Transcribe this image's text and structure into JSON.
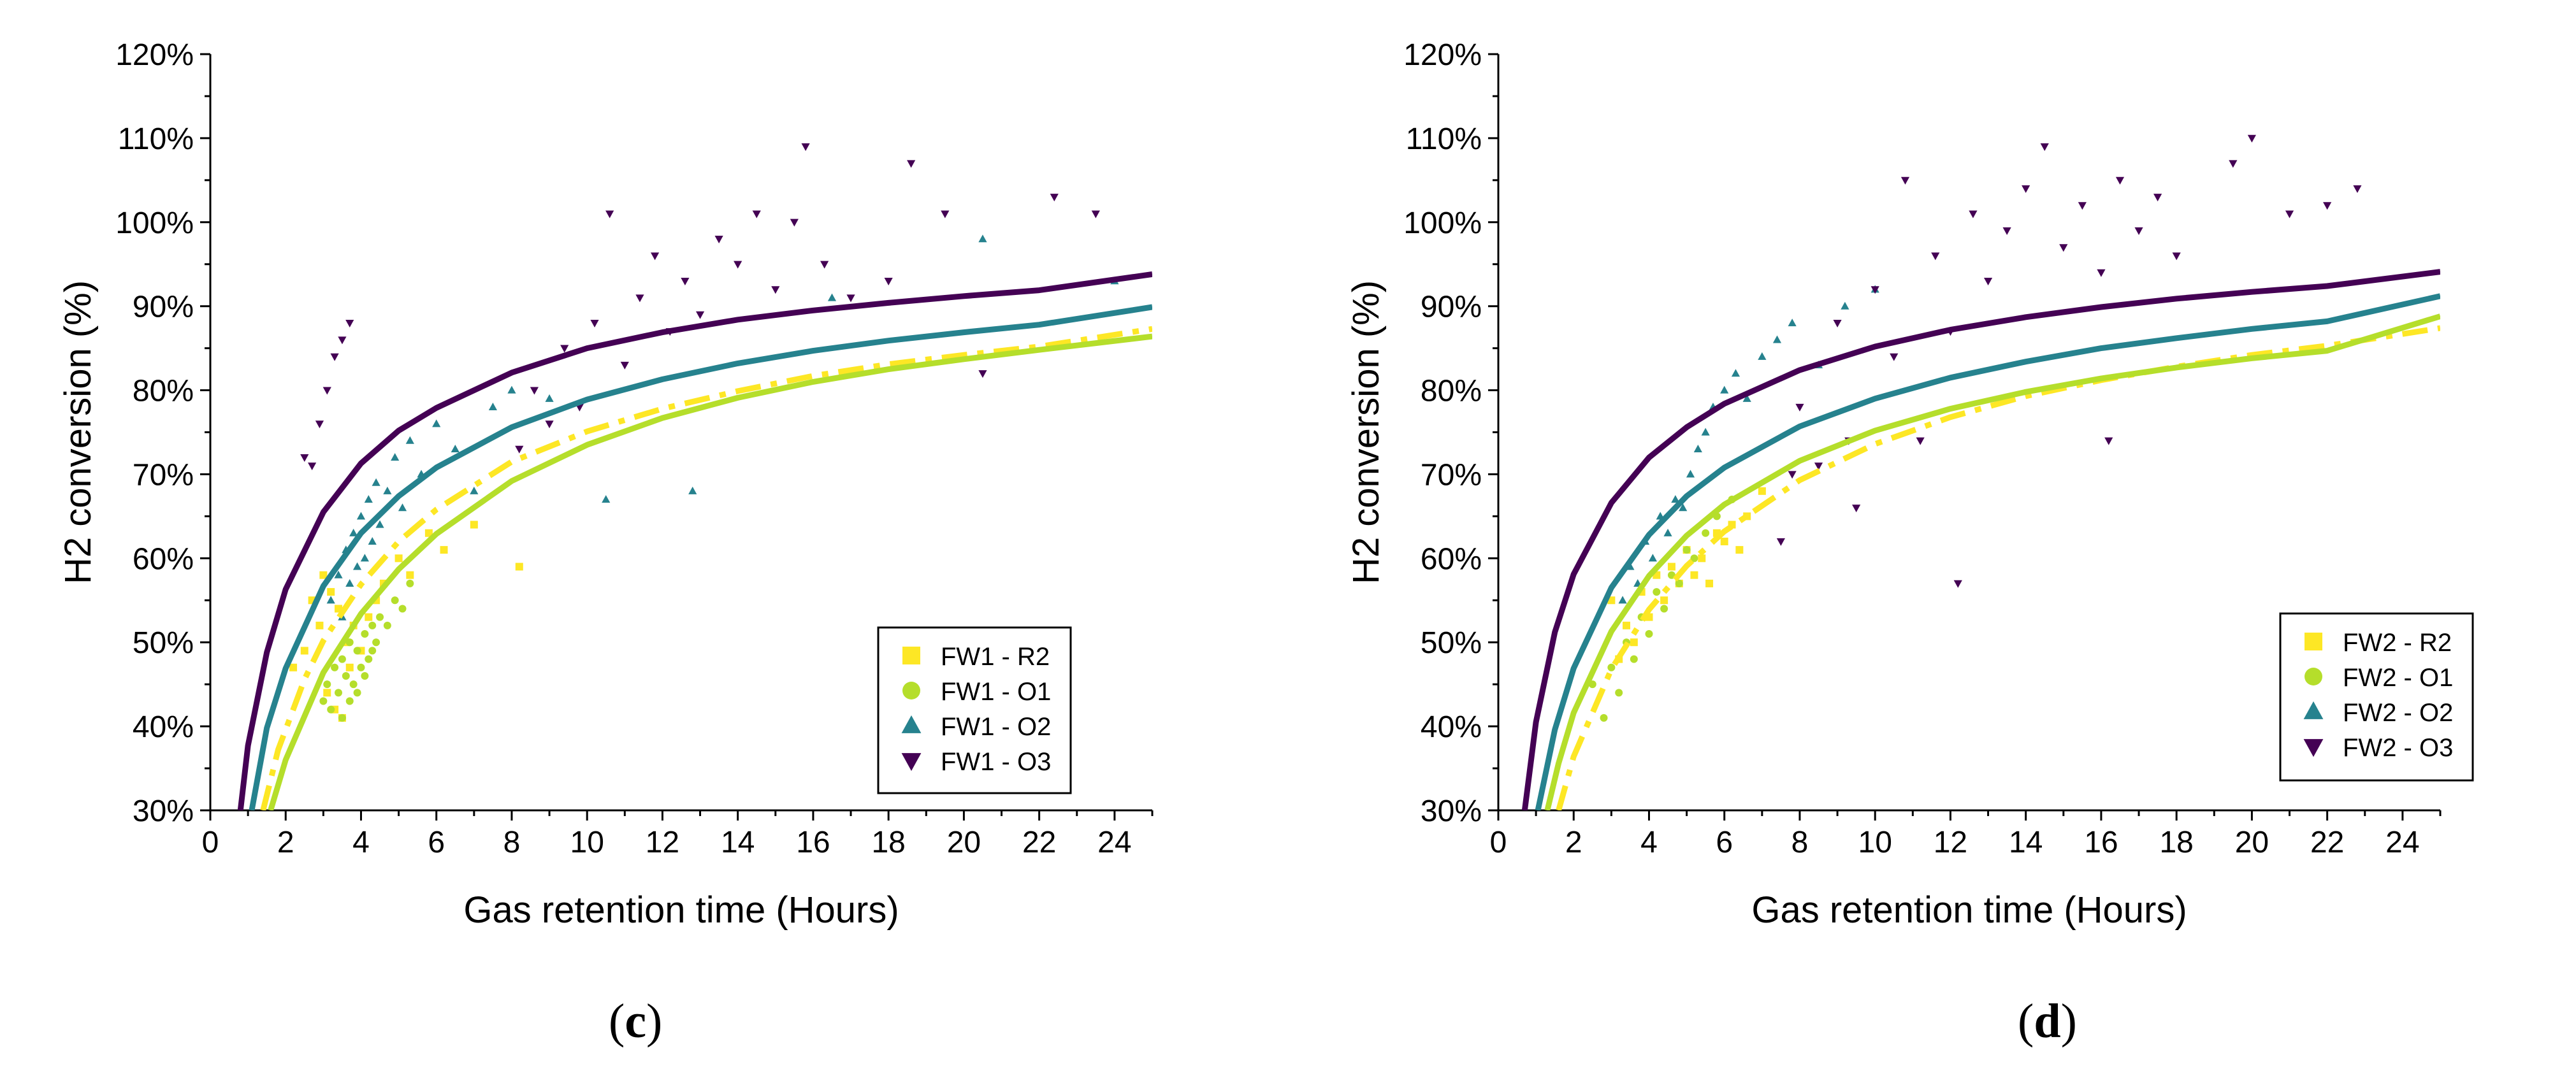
{
  "colors": {
    "R2": "#fde725",
    "O1": "#b5de2b",
    "O2": "#26828e",
    "O3": "#440154"
  },
  "chart_data": [
    {
      "type": "scatter",
      "panel_label": "c",
      "xlabel": "Gas retention time (Hours)",
      "ylabel": "H2 conversion (%)",
      "xlim": [
        0,
        25
      ],
      "ylim": [
        30,
        120
      ],
      "xticks": [
        0,
        2,
        4,
        6,
        8,
        10,
        12,
        14,
        16,
        18,
        20,
        22,
        24
      ],
      "yticks": [
        30,
        40,
        50,
        60,
        70,
        80,
        90,
        100,
        110,
        120
      ],
      "ytick_labels": [
        "30%",
        "40%",
        "50%",
        "60%",
        "70%",
        "80%",
        "90%",
        "100%",
        "110%",
        "120%"
      ],
      "legend_position": "bottom-right",
      "series": [
        {
          "name": "FW1 - R2",
          "key": "R2",
          "marker": "square",
          "line": "dash-dot",
          "curve": {
            "x": [
              1.4,
              1.8,
              2.5,
              3,
              4,
              5,
              6,
              8,
              10,
              12,
              14,
              16,
              18,
              20,
              22,
              25
            ],
            "y": [
              30,
              37.2,
              45.6,
              50.2,
              56.9,
              62,
              65.8,
              71.5,
              75.1,
              77.8,
              79.9,
              81.7,
              83.1,
              84.2,
              85.2,
              87.3
            ]
          },
          "points": {
            "x": [
              2.2,
              2.5,
              2.7,
              2.9,
              3.0,
              3.1,
              3.2,
              3.3,
              3.4,
              3.5,
              3.6,
              3.7,
              3.8,
              4.0,
              4.2,
              4.4,
              4.6,
              5.0,
              5.3,
              5.8,
              6.2,
              7.0,
              8.2
            ],
            "y": [
              47,
              49,
              55,
              52,
              58,
              44,
              56,
              42,
              54,
              41,
              50,
              47,
              52,
              49,
              53,
              55,
              57,
              60,
              58,
              63,
              61,
              64,
              59
            ]
          }
        },
        {
          "name": "FW1 - O1",
          "key": "O1",
          "marker": "circle",
          "line": "solid",
          "curve": {
            "x": [
              1.6,
              2,
              3,
              4,
              5,
              6,
              8,
              10,
              12,
              14,
              16,
              18,
              20,
              22,
              25
            ],
            "y": [
              30,
              36,
              46.4,
              53.4,
              58.7,
              62.9,
              69.2,
              73.5,
              76.7,
              79.1,
              81,
              82.5,
              83.7,
              84.8,
              86.4
            ]
          },
          "points": {
            "x": [
              3.0,
              3.1,
              3.2,
              3.3,
              3.4,
              3.5,
              3.6,
              3.7,
              3.8,
              3.9,
              4.0,
              4.1,
              4.2,
              4.3,
              4.4,
              4.5,
              4.7,
              4.9,
              5.1,
              5.3,
              3.5,
              3.7,
              3.9,
              4.1,
              4.3
            ],
            "y": [
              43,
              45,
              42,
              47,
              44,
              48,
              46,
              50,
              45,
              49,
              47,
              51,
              48,
              52,
              50,
              53,
              52,
              55,
              54,
              57,
              41,
              43,
              44,
              46,
              49
            ]
          }
        },
        {
          "name": "FW1 - O2",
          "key": "O2",
          "marker": "triangle-up",
          "line": "solid",
          "curve": {
            "x": [
              1.1,
              1.5,
              2,
              3,
              4,
              5,
              6,
              8,
              10,
              12,
              14,
              16,
              18,
              20,
              22,
              25
            ],
            "y": [
              30,
              39.8,
              46.9,
              56.7,
              63,
              67.4,
              70.8,
              75.6,
              78.9,
              81.3,
              83.2,
              84.7,
              85.9,
              86.9,
              87.8,
              89.9
            ]
          },
          "points": {
            "x": [
              3.2,
              3.4,
              3.5,
              3.6,
              3.7,
              3.8,
              3.9,
              4.0,
              4.1,
              4.2,
              4.3,
              4.4,
              4.5,
              4.7,
              4.9,
              5.1,
              5.3,
              5.6,
              6.0,
              6.5,
              7.0,
              7.5,
              8.0,
              9.0,
              10.5,
              12.8,
              16.5,
              20.5,
              24.0
            ],
            "y": [
              55,
              58,
              53,
              61,
              57,
              63,
              59,
              65,
              60,
              67,
              62,
              69,
              64,
              68,
              72,
              66,
              74,
              70,
              76,
              73,
              68,
              78,
              80,
              79,
              67,
              68,
              91,
              98,
              93
            ]
          }
        },
        {
          "name": "FW1 - O3",
          "key": "O3",
          "marker": "triangle-down",
          "line": "solid",
          "curve": {
            "x": [
              0.8,
              1,
              1.5,
              2,
              3,
              4,
              5,
              6,
              8,
              10,
              12,
              14,
              16,
              18,
              20,
              22,
              25
            ],
            "y": [
              30,
              37.7,
              48.8,
              56.3,
              65.5,
              71.3,
              75.2,
              77.9,
              82.1,
              85,
              86.9,
              88.4,
              89.5,
              90.4,
              91.2,
              91.9,
              93.8
            ]
          },
          "points": {
            "x": [
              2.5,
              2.7,
              2.9,
              3.1,
              3.3,
              3.5,
              3.7,
              8.2,
              8.6,
              9.0,
              9.4,
              9.8,
              10.2,
              10.6,
              11.0,
              11.4,
              11.8,
              12.2,
              12.6,
              13.0,
              13.5,
              14.0,
              14.5,
              15.0,
              15.5,
              15.8,
              16.3,
              17.0,
              18.0,
              18.6,
              19.5,
              20.5,
              22.4,
              23.5
            ],
            "y": [
              72,
              71,
              76,
              80,
              84,
              86,
              88,
              73,
              80,
              76,
              85,
              78,
              88,
              101,
              83,
              91,
              96,
              87,
              93,
              89,
              98,
              95,
              101,
              92,
              100,
              109,
              95,
              91,
              93,
              107,
              101,
              82,
              103,
              101
            ]
          }
        }
      ]
    },
    {
      "type": "scatter",
      "panel_label": "d",
      "xlabel": "Gas retention time (Hours)",
      "ylabel": "H2 conversion (%)",
      "xlim": [
        0,
        25
      ],
      "ylim": [
        30,
        120
      ],
      "xticks": [
        0,
        2,
        4,
        6,
        8,
        10,
        12,
        14,
        16,
        18,
        20,
        22,
        24
      ],
      "yticks": [
        30,
        40,
        50,
        60,
        70,
        80,
        90,
        100,
        110,
        120
      ],
      "ytick_labels": [
        "30%",
        "40%",
        "50%",
        "60%",
        "70%",
        "80%",
        "90%",
        "100%",
        "110%",
        "120%"
      ],
      "legend_position": "bottom-right",
      "series": [
        {
          "name": "FW2 - R2",
          "key": "R2",
          "marker": "square",
          "line": "dash-dot",
          "curve": {
            "x": [
              1.6,
              2,
              3,
              4,
              5,
              6,
              8,
              10,
              12,
              14,
              16,
              18,
              20,
              22,
              25
            ],
            "y": [
              30,
              36.4,
              46.8,
              53.9,
              59.1,
              63.2,
              69.3,
              73.6,
              76.8,
              79.3,
              81.2,
              82.8,
              84.2,
              85.3,
              87.4
            ]
          },
          "points": {
            "x": [
              3.0,
              3.2,
              3.4,
              3.6,
              3.8,
              4.0,
              4.2,
              4.4,
              4.6,
              4.8,
              5.0,
              5.2,
              5.4,
              5.6,
              5.8,
              6.0,
              6.2,
              6.4,
              6.6,
              7.0
            ],
            "y": [
              55,
              48,
              52,
              50,
              56,
              53,
              58,
              55,
              59,
              57,
              61,
              58,
              60,
              57,
              63,
              62,
              64,
              61,
              65,
              68
            ]
          }
        },
        {
          "name": "FW2 - O1",
          "key": "O1",
          "marker": "circle",
          "line": "solid",
          "curve": {
            "x": [
              1.3,
              1.6,
              2,
              3,
              4,
              5,
              6,
              8,
              10,
              12,
              14,
              16,
              18,
              20,
              22,
              25
            ],
            "y": [
              30,
              35.6,
              41.6,
              51.3,
              57.9,
              62.7,
              66.4,
              71.6,
              75.2,
              77.8,
              79.8,
              81.4,
              82.7,
              83.8,
              84.7,
              88.8
            ]
          },
          "points": {
            "x": [
              2.5,
              2.8,
              3.0,
              3.2,
              3.4,
              3.6,
              3.8,
              4.0,
              4.2,
              4.4,
              4.6,
              4.8,
              5.0,
              5.2,
              5.5,
              5.8,
              6.2
            ],
            "y": [
              45,
              41,
              47,
              44,
              50,
              48,
              53,
              51,
              56,
              54,
              58,
              57,
              61,
              60,
              63,
              65,
              67
            ]
          }
        },
        {
          "name": "FW2 - O2",
          "key": "O2",
          "marker": "triangle-up",
          "line": "solid",
          "curve": {
            "x": [
              1.05,
              1.5,
              2,
              3,
              4,
              5,
              6,
              8,
              10,
              12,
              14,
              16,
              18,
              20,
              22,
              25
            ],
            "y": [
              30,
              39.6,
              46.9,
              56.5,
              62.8,
              67.4,
              70.8,
              75.7,
              79,
              81.5,
              83.4,
              85,
              86.2,
              87.3,
              88.2,
              91.2
            ]
          },
          "points": {
            "x": [
              3.3,
              3.5,
              3.7,
              3.9,
              4.1,
              4.3,
              4.5,
              4.7,
              4.9,
              5.1,
              5.3,
              5.5,
              5.7,
              6.0,
              6.3,
              6.6,
              7.0,
              7.4,
              7.8,
              8.5,
              9.2,
              10.0
            ],
            "y": [
              55,
              59,
              57,
              62,
              60,
              65,
              63,
              67,
              66,
              70,
              73,
              75,
              78,
              80,
              82,
              79,
              84,
              86,
              88,
              83,
              90,
              92
            ]
          }
        },
        {
          "name": "FW2 - O3",
          "key": "O3",
          "marker": "triangle-down",
          "line": "solid",
          "curve": {
            "x": [
              0.7,
              1,
              1.5,
              2,
              3,
              4,
              5,
              6,
              8,
              10,
              12,
              14,
              16,
              18,
              20,
              22,
              25
            ],
            "y": [
              30,
              40.5,
              51.2,
              58.1,
              66.6,
              72,
              75.6,
              78.4,
              82.4,
              85.2,
              87.2,
              88.7,
              89.9,
              90.9,
              91.7,
              92.4,
              94.1
            ]
          },
          "points": {
            "x": [
              7.5,
              8.0,
              8.5,
              9.0,
              9.5,
              10.0,
              10.5,
              10.8,
              11.2,
              11.6,
              12.0,
              12.2,
              12.6,
              13.0,
              13.5,
              14.0,
              14.5,
              15.0,
              15.5,
              16.0,
              16.5,
              17.0,
              17.5,
              18.0,
              19.5,
              20.0,
              21.0,
              22.0,
              22.8,
              7.8,
              9.3,
              16.2
            ],
            "y": [
              62,
              78,
              71,
              88,
              66,
              92,
              84,
              105,
              74,
              96,
              87,
              57,
              101,
              93,
              99,
              104,
              109,
              97,
              102,
              94,
              105,
              99,
              103,
              96,
              107,
              110,
              101,
              102,
              104,
              70,
              74,
              74
            ]
          }
        }
      ]
    }
  ]
}
